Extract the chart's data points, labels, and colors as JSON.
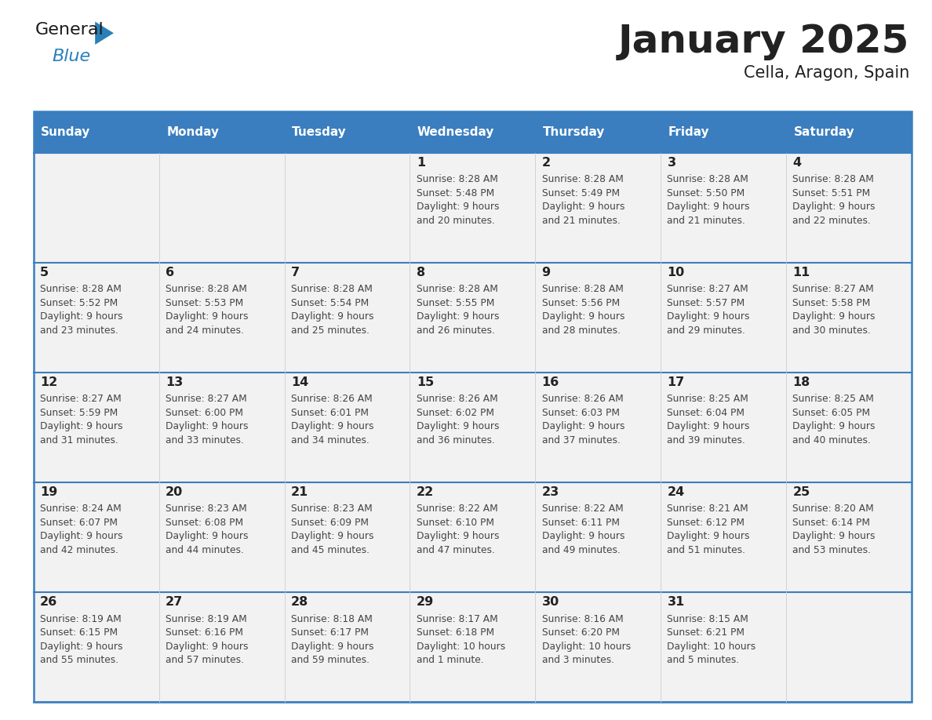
{
  "title": "January 2025",
  "subtitle": "Cella, Aragon, Spain",
  "header_color": "#3a7ebf",
  "header_text_color": "#ffffff",
  "cell_bg": "#f2f2f2",
  "border_color": "#3a7ebf",
  "grid_color": "#cccccc",
  "text_color": "#222222",
  "info_color": "#444444",
  "days_of_week": [
    "Sunday",
    "Monday",
    "Tuesday",
    "Wednesday",
    "Thursday",
    "Friday",
    "Saturday"
  ],
  "weeks": [
    [
      {
        "day": "",
        "info": ""
      },
      {
        "day": "",
        "info": ""
      },
      {
        "day": "",
        "info": ""
      },
      {
        "day": "1",
        "info": "Sunrise: 8:28 AM\nSunset: 5:48 PM\nDaylight: 9 hours\nand 20 minutes."
      },
      {
        "day": "2",
        "info": "Sunrise: 8:28 AM\nSunset: 5:49 PM\nDaylight: 9 hours\nand 21 minutes."
      },
      {
        "day": "3",
        "info": "Sunrise: 8:28 AM\nSunset: 5:50 PM\nDaylight: 9 hours\nand 21 minutes."
      },
      {
        "day": "4",
        "info": "Sunrise: 8:28 AM\nSunset: 5:51 PM\nDaylight: 9 hours\nand 22 minutes."
      }
    ],
    [
      {
        "day": "5",
        "info": "Sunrise: 8:28 AM\nSunset: 5:52 PM\nDaylight: 9 hours\nand 23 minutes."
      },
      {
        "day": "6",
        "info": "Sunrise: 8:28 AM\nSunset: 5:53 PM\nDaylight: 9 hours\nand 24 minutes."
      },
      {
        "day": "7",
        "info": "Sunrise: 8:28 AM\nSunset: 5:54 PM\nDaylight: 9 hours\nand 25 minutes."
      },
      {
        "day": "8",
        "info": "Sunrise: 8:28 AM\nSunset: 5:55 PM\nDaylight: 9 hours\nand 26 minutes."
      },
      {
        "day": "9",
        "info": "Sunrise: 8:28 AM\nSunset: 5:56 PM\nDaylight: 9 hours\nand 28 minutes."
      },
      {
        "day": "10",
        "info": "Sunrise: 8:27 AM\nSunset: 5:57 PM\nDaylight: 9 hours\nand 29 minutes."
      },
      {
        "day": "11",
        "info": "Sunrise: 8:27 AM\nSunset: 5:58 PM\nDaylight: 9 hours\nand 30 minutes."
      }
    ],
    [
      {
        "day": "12",
        "info": "Sunrise: 8:27 AM\nSunset: 5:59 PM\nDaylight: 9 hours\nand 31 minutes."
      },
      {
        "day": "13",
        "info": "Sunrise: 8:27 AM\nSunset: 6:00 PM\nDaylight: 9 hours\nand 33 minutes."
      },
      {
        "day": "14",
        "info": "Sunrise: 8:26 AM\nSunset: 6:01 PM\nDaylight: 9 hours\nand 34 minutes."
      },
      {
        "day": "15",
        "info": "Sunrise: 8:26 AM\nSunset: 6:02 PM\nDaylight: 9 hours\nand 36 minutes."
      },
      {
        "day": "16",
        "info": "Sunrise: 8:26 AM\nSunset: 6:03 PM\nDaylight: 9 hours\nand 37 minutes."
      },
      {
        "day": "17",
        "info": "Sunrise: 8:25 AM\nSunset: 6:04 PM\nDaylight: 9 hours\nand 39 minutes."
      },
      {
        "day": "18",
        "info": "Sunrise: 8:25 AM\nSunset: 6:05 PM\nDaylight: 9 hours\nand 40 minutes."
      }
    ],
    [
      {
        "day": "19",
        "info": "Sunrise: 8:24 AM\nSunset: 6:07 PM\nDaylight: 9 hours\nand 42 minutes."
      },
      {
        "day": "20",
        "info": "Sunrise: 8:23 AM\nSunset: 6:08 PM\nDaylight: 9 hours\nand 44 minutes."
      },
      {
        "day": "21",
        "info": "Sunrise: 8:23 AM\nSunset: 6:09 PM\nDaylight: 9 hours\nand 45 minutes."
      },
      {
        "day": "22",
        "info": "Sunrise: 8:22 AM\nSunset: 6:10 PM\nDaylight: 9 hours\nand 47 minutes."
      },
      {
        "day": "23",
        "info": "Sunrise: 8:22 AM\nSunset: 6:11 PM\nDaylight: 9 hours\nand 49 minutes."
      },
      {
        "day": "24",
        "info": "Sunrise: 8:21 AM\nSunset: 6:12 PM\nDaylight: 9 hours\nand 51 minutes."
      },
      {
        "day": "25",
        "info": "Sunrise: 8:20 AM\nSunset: 6:14 PM\nDaylight: 9 hours\nand 53 minutes."
      }
    ],
    [
      {
        "day": "26",
        "info": "Sunrise: 8:19 AM\nSunset: 6:15 PM\nDaylight: 9 hours\nand 55 minutes."
      },
      {
        "day": "27",
        "info": "Sunrise: 8:19 AM\nSunset: 6:16 PM\nDaylight: 9 hours\nand 57 minutes."
      },
      {
        "day": "28",
        "info": "Sunrise: 8:18 AM\nSunset: 6:17 PM\nDaylight: 9 hours\nand 59 minutes."
      },
      {
        "day": "29",
        "info": "Sunrise: 8:17 AM\nSunset: 6:18 PM\nDaylight: 10 hours\nand 1 minute."
      },
      {
        "day": "30",
        "info": "Sunrise: 8:16 AM\nSunset: 6:20 PM\nDaylight: 10 hours\nand 3 minutes."
      },
      {
        "day": "31",
        "info": "Sunrise: 8:15 AM\nSunset: 6:21 PM\nDaylight: 10 hours\nand 5 minutes."
      },
      {
        "day": "",
        "info": ""
      }
    ]
  ]
}
